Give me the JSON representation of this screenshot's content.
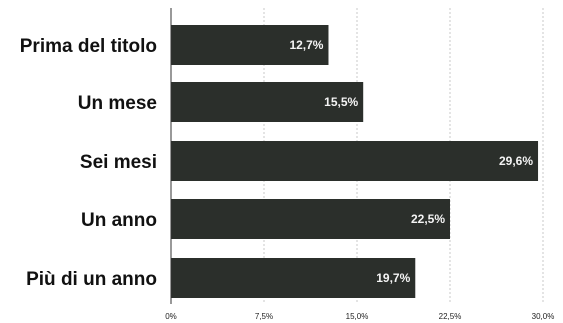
{
  "chart_data": {
    "type": "bar",
    "orientation": "horizontal",
    "categories": [
      "Prima del titolo",
      "Un mese",
      "Sei mesi",
      "Un anno",
      "Più di un anno"
    ],
    "values": [
      12.7,
      15.5,
      29.6,
      22.5,
      19.7
    ],
    "value_labels": [
      "12,7%",
      "15,5%",
      "29,6%",
      "22,5%",
      "19,7%"
    ],
    "xticks": [
      0,
      7.5,
      15,
      22.5,
      30
    ],
    "xtick_labels": [
      "0%",
      "7,5%",
      "15,0%",
      "22,5%",
      "30,0%"
    ],
    "xlim": [
      0,
      30
    ],
    "grid": true,
    "title": "",
    "xlabel": "",
    "ylabel": "",
    "colors": {
      "bar": "#2b2f2b",
      "bar_label": "#f4f4f4",
      "category_label": "#111111",
      "gridline": "#bdbdbd"
    }
  }
}
